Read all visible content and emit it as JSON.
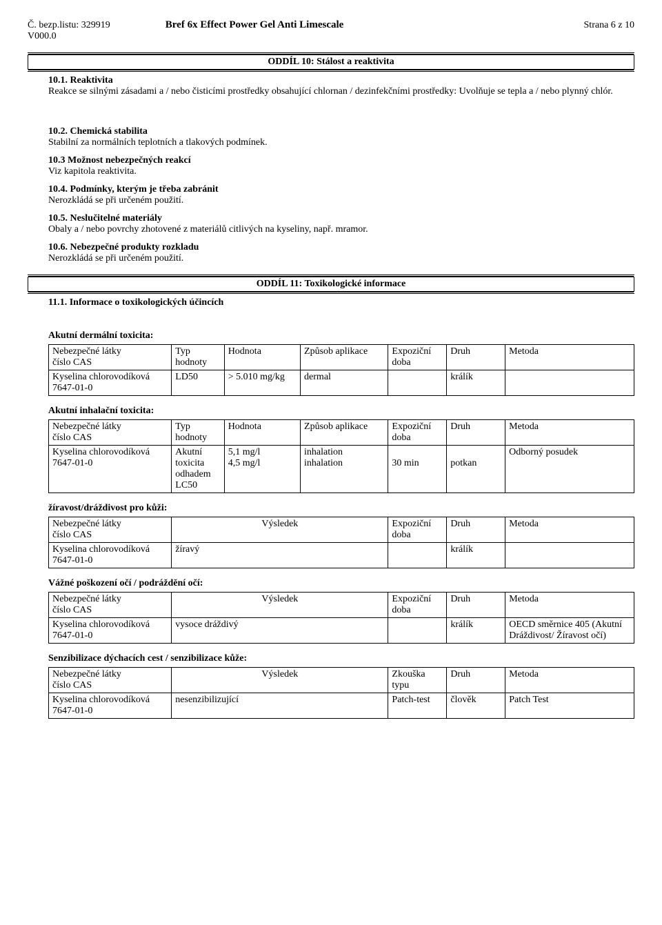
{
  "header": {
    "doc_number_label": "Č. bezp.listu:",
    "doc_number": "329919",
    "version": "V000.0",
    "product_title": "Bref 6x Effect Power Gel Anti Limescale",
    "page_label": "Strana 6 z 10"
  },
  "sections": {
    "s10": {
      "title": "ODDÍL 10: Stálost a reaktivita",
      "s10_1_head": "10.1. Reaktivita",
      "s10_1_body": "Reakce se silnými zásadami a / nebo čisticími prostředky obsahující chlornan / dezinfekčními prostředky: Uvolňuje se tepla a / nebo plynný chlór.",
      "s10_2_head": "10.2. Chemická stabilita",
      "s10_2_body": "Stabilní za normálních teplotních a tlakových podmínek.",
      "s10_3_head": "10.3 Možnost nebezpečných reakcí",
      "s10_3_body": "Viz kapitola reaktivita.",
      "s10_4_head": "10.4. Podmínky, kterým je třeba zabránit",
      "s10_4_body": "Nerozkládá se při určeném použití.",
      "s10_5_head": "10.5. Neslučitelné materiály",
      "s10_5_body": "Obaly a / nebo povrchy zhotovené z materiálů citlivých na kyseliny, např. mramor.",
      "s10_6_head": "10.6. Nebezpečné produkty rozkladu",
      "s10_6_body": "Nerozkládá se při určeném použití."
    },
    "s11": {
      "title": "ODDÍL 11: Toxikologické informace",
      "s11_1_head": "11.1. Informace o toxikologických účincích"
    }
  },
  "tox_headers_full": {
    "col1_l1": "Nebezpečné látky",
    "col1_l2": "číslo CAS",
    "col2_l1": "Typ",
    "col2_l2": "hodnoty",
    "col3": "Hodnota",
    "col4": "Způsob aplikace",
    "col5_l1": "Expoziční",
    "col5_l2": "doba",
    "col6": "Druh",
    "col7": "Metoda"
  },
  "tox_headers_result": {
    "col1_l1": "Nebezpečné látky",
    "col1_l2": "číslo CAS",
    "col2": "Výsledek",
    "col5_l1": "Expoziční",
    "col5_l2": "doba",
    "col6": "Druh",
    "col7": "Metoda"
  },
  "tox_headers_sens": {
    "col1_l1": "Nebezpečné látky",
    "col1_l2": "číslo CAS",
    "col2": "Výsledek",
    "col5_l1": "Zkouška",
    "col5_l2": "typu",
    "col6": "Druh",
    "col7": "Metoda"
  },
  "dermal": {
    "title": "Akutní dermální toxicita:",
    "row": {
      "substance_l1": "Kyselina chlorovodíková",
      "substance_l2": "7647-01-0",
      "type": "LD50",
      "value": "> 5.010 mg/kg",
      "route": "dermal",
      "exposure": "",
      "species": "králík",
      "method": ""
    },
    "col_widths": [
      "21%",
      "9%",
      "13%",
      "15%",
      "10%",
      "10%",
      "22%"
    ]
  },
  "inhalation": {
    "title": "Akutní inhalační toxicita:",
    "row": {
      "substance_l1": "Kyselina chlorovodíková",
      "substance_l2": "7647-01-0",
      "type_l1": "Akutní",
      "type_l2": "toxicita",
      "type_l3": "odhadem",
      "type_l4": "LC50",
      "value_l1": "5,1 mg/l",
      "value_l2": "4,5 mg/l",
      "route_l1": "inhalation",
      "route_l2": "inhalation",
      "exposure_l1": "",
      "exposure_l2": "30 min",
      "species_l1": "",
      "species_l2": "potkan",
      "method": "Odborný posudek"
    },
    "col_widths": [
      "21%",
      "9%",
      "13%",
      "15%",
      "10%",
      "10%",
      "22%"
    ]
  },
  "skin_corr": {
    "title": "žíravost/dráždivost pro kůži:",
    "row": {
      "substance_l1": "Kyselina chlorovodíková",
      "substance_l2": "7647-01-0",
      "result": "žíravý",
      "exposure": "",
      "species": "králík",
      "method": ""
    },
    "col_widths": [
      "21%",
      "37%",
      "10%",
      "10%",
      "22%"
    ]
  },
  "eye_dam": {
    "title": "Vážné poškození očí / podráždění očí:",
    "row": {
      "substance_l1": "Kyselina chlorovodíková",
      "substance_l2": "7647-01-0",
      "result": "vysoce dráždivý",
      "exposure": "",
      "species": "králík",
      "method_l1": "OECD směrnice 405 (Akutní",
      "method_l2": "Dráždivost/ Žíravost očí)"
    },
    "col_widths": [
      "21%",
      "37%",
      "10%",
      "10%",
      "22%"
    ]
  },
  "sensitization": {
    "title": "Senzibilizace dýchacích cest / senzibilizace kůže:",
    "row": {
      "substance_l1": "Kyselina chlorovodíková",
      "substance_l2": "7647-01-0",
      "result": "nesenzibilizující",
      "test": "Patch-test",
      "species": "člověk",
      "method": "Patch Test"
    },
    "col_widths": [
      "21%",
      "37%",
      "10%",
      "10%",
      "22%"
    ]
  }
}
